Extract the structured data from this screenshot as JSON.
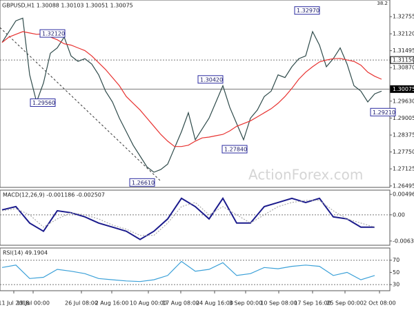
{
  "header": "GBPUSD,H1 1.30088 1.30103 1.30051 1.30075",
  "corner_note": "38.2",
  "watermark": "ActionForex.com",
  "chart_data": [
    {
      "type": "line",
      "title": "GBPUSD,H1",
      "x": [
        0,
        1,
        2,
        3,
        4,
        5,
        6,
        7,
        8,
        9,
        10,
        11,
        12,
        13,
        14,
        15,
        16,
        17,
        18,
        19,
        20,
        21,
        22,
        23,
        24,
        25,
        26,
        27,
        28,
        29,
        30,
        31,
        32,
        33,
        34,
        35,
        36,
        37,
        38,
        39,
        40,
        41,
        42,
        43,
        44,
        45,
        46,
        47,
        48,
        49,
        50,
        51,
        52,
        53,
        54,
        55
      ],
      "xlim": [
        -0.3,
        56.2
      ],
      "xticks": [
        {
          "value": 1.7,
          "label": "11 Jul 2018"
        },
        {
          "value": 4.5,
          "label": "19 Jul 00:00"
        },
        {
          "value": 11.5,
          "label": "26 Jul 08:00"
        },
        {
          "value": 15.9,
          "label": "2 Aug 16:00"
        },
        {
          "value": 21.2,
          "label": "10 Aug 00:00"
        },
        {
          "value": 25.9,
          "label": "17 Aug 08:00"
        },
        {
          "value": 30.8,
          "label": "24 Aug 16:00"
        },
        {
          "value": 35.3,
          "label": "3 Sep 00:00"
        },
        {
          "value": 40.1,
          "label": "10 Sep 08:00"
        },
        {
          "value": 45.0,
          "label": "17 Sep 16:00"
        },
        {
          "value": 49.7,
          "label": "25 Sep 00:00"
        },
        {
          "value": 54.7,
          "label": "2 Oct 08:00"
        }
      ],
      "ylim": [
        1.2644,
        1.3337
      ],
      "yticks": [
        {
          "value": 1.32755,
          "label": "1.32755"
        },
        {
          "value": 1.3212,
          "label": "1.32120"
        },
        {
          "value": 1.31495,
          "label": "1.31495"
        },
        {
          "value": 1.3115,
          "label": "1.31150",
          "style": "boxed-light",
          "line": "dotted"
        },
        {
          "value": 1.3087,
          "label": "1.30870"
        },
        {
          "value": 1.30075,
          "label": "1.30075",
          "style": "boxed-dark",
          "line": "solid"
        },
        {
          "value": 1.2963,
          "label": "1.29630"
        },
        {
          "value": 1.29005,
          "label": "1.29005"
        },
        {
          "value": 1.28375,
          "label": "1.28375"
        },
        {
          "value": 1.2775,
          "label": "1.27750"
        },
        {
          "value": 1.27125,
          "label": "1.27125"
        },
        {
          "value": 1.26495,
          "label": "1.26495"
        }
      ],
      "series": [
        {
          "name": "GBPUSD",
          "color": "#2e4a4a",
          "values": [
            1.318,
            1.322,
            1.326,
            1.327,
            1.306,
            1.296,
            1.303,
            1.314,
            1.316,
            1.32,
            1.313,
            1.311,
            1.312,
            1.31,
            1.306,
            1.3,
            1.296,
            1.29,
            1.285,
            1.28,
            1.276,
            1.272,
            1.27,
            1.271,
            1.273,
            1.279,
            1.285,
            1.292,
            1.282,
            1.286,
            1.29,
            1.296,
            1.302,
            1.294,
            1.288,
            1.282,
            1.29,
            1.293,
            1.298,
            1.3,
            1.306,
            1.305,
            1.309,
            1.312,
            1.313,
            1.322,
            1.317,
            1.309,
            1.312,
            1.316,
            1.31,
            1.302,
            1.3,
            1.296,
            1.299,
            1.3
          ]
        },
        {
          "name": "MA",
          "color": "#e8312f",
          "values": [
            1.318,
            1.32,
            1.321,
            1.322,
            1.3215,
            1.321,
            1.3212,
            1.32,
            1.319,
            1.3175,
            1.317,
            1.316,
            1.315,
            1.313,
            1.3105,
            1.308,
            1.305,
            1.302,
            1.298,
            1.2955,
            1.293,
            1.29,
            1.287,
            1.284,
            1.2815,
            1.2795,
            1.2795,
            1.28,
            1.2815,
            1.2827,
            1.283,
            1.2835,
            1.284,
            1.2853,
            1.287,
            1.288,
            1.289,
            1.2905,
            1.292,
            1.2935,
            1.2955,
            1.298,
            1.301,
            1.3044,
            1.307,
            1.309,
            1.3108,
            1.3115,
            1.312,
            1.3121,
            1.3115,
            1.311,
            1.3096,
            1.307,
            1.3055,
            1.3044
          ]
        }
      ],
      "annotations": [
        {
          "text": "1.32120",
          "x": 5.5,
          "y": 1.3212
        },
        {
          "text": "1.29560",
          "x": 4.1,
          "y": 1.2956
        },
        {
          "text": "1.26610",
          "x": 18.5,
          "y": 1.2661
        },
        {
          "text": "1.30420",
          "x": 28.4,
          "y": 1.3042
        },
        {
          "text": "1.27840",
          "x": 31.9,
          "y": 1.2784
        },
        {
          "text": "1.32970",
          "x": 42.4,
          "y": 1.3297
        },
        {
          "text": "1.29210",
          "x": 53.4,
          "y": 1.2921
        }
      ]
    },
    {
      "type": "line",
      "title": "MACD(12,26,9) -0.001186 -0.002507",
      "x": [
        0,
        2,
        4,
        6,
        8,
        10,
        12,
        14,
        16,
        18,
        20,
        22,
        24,
        26,
        28,
        30,
        32,
        34,
        36,
        38,
        40,
        42,
        44,
        46,
        48,
        50,
        52,
        54
      ],
      "xlim": [
        -0.3,
        56.2
      ],
      "ylim": [
        -0.0074,
        0.006
      ],
      "yticks": [
        0.004968,
        {
          "value": 0,
          "label": "0.00",
          "line": "dotted"
        },
        -0.006372
      ],
      "series": [
        {
          "name": "MACD",
          "color": "#1a1a8c",
          "values": [
            0.0012,
            0.002,
            -0.002,
            -0.004,
            0.001,
            0.0005,
            -0.0005,
            -0.002,
            -0.003,
            -0.004,
            -0.006,
            -0.004,
            -0.001,
            0.004,
            0.002,
            -0.001,
            0.004,
            -0.002,
            -0.002,
            0.002,
            0.003,
            0.004,
            0.003,
            0.004,
            -0.0005,
            -0.001,
            -0.003,
            -0.003
          ]
        },
        {
          "name": "Signal",
          "color": "#aaaaaa",
          "values": [
            0.001,
            0.0015,
            0.0,
            -0.003,
            -0.001,
            0.0005,
            0.0,
            -0.001,
            -0.0025,
            -0.0035,
            -0.005,
            -0.005,
            -0.002,
            0.002,
            0.003,
            0.0,
            0.002,
            0.0,
            -0.002,
            0.0,
            0.002,
            0.003,
            0.0035,
            0.0035,
            0.001,
            -0.001,
            -0.002,
            -0.003
          ]
        }
      ]
    },
    {
      "type": "line",
      "title": "RSI(14) 49.1904",
      "x": [
        0,
        2,
        4,
        6,
        8,
        10,
        12,
        14,
        16,
        18,
        20,
        22,
        24,
        26,
        28,
        30,
        32,
        34,
        36,
        38,
        40,
        42,
        44,
        46,
        48,
        50,
        52,
        54
      ],
      "xlim": [
        -0.3,
        56.2
      ],
      "ylim": [
        20,
        90
      ],
      "yticks": [
        {
          "value": 70,
          "label": "70",
          "line": "dotted"
        },
        50,
        {
          "value": 30,
          "label": "30",
          "line": "dotted"
        }
      ],
      "series": [
        {
          "name": "RSI",
          "color": "#3aa0d8",
          "values": [
            58,
            62,
            40,
            42,
            55,
            52,
            48,
            40,
            38,
            36,
            35,
            38,
            45,
            68,
            52,
            55,
            66,
            45,
            48,
            58,
            56,
            60,
            62,
            60,
            45,
            50,
            38,
            45
          ]
        }
      ]
    }
  ]
}
